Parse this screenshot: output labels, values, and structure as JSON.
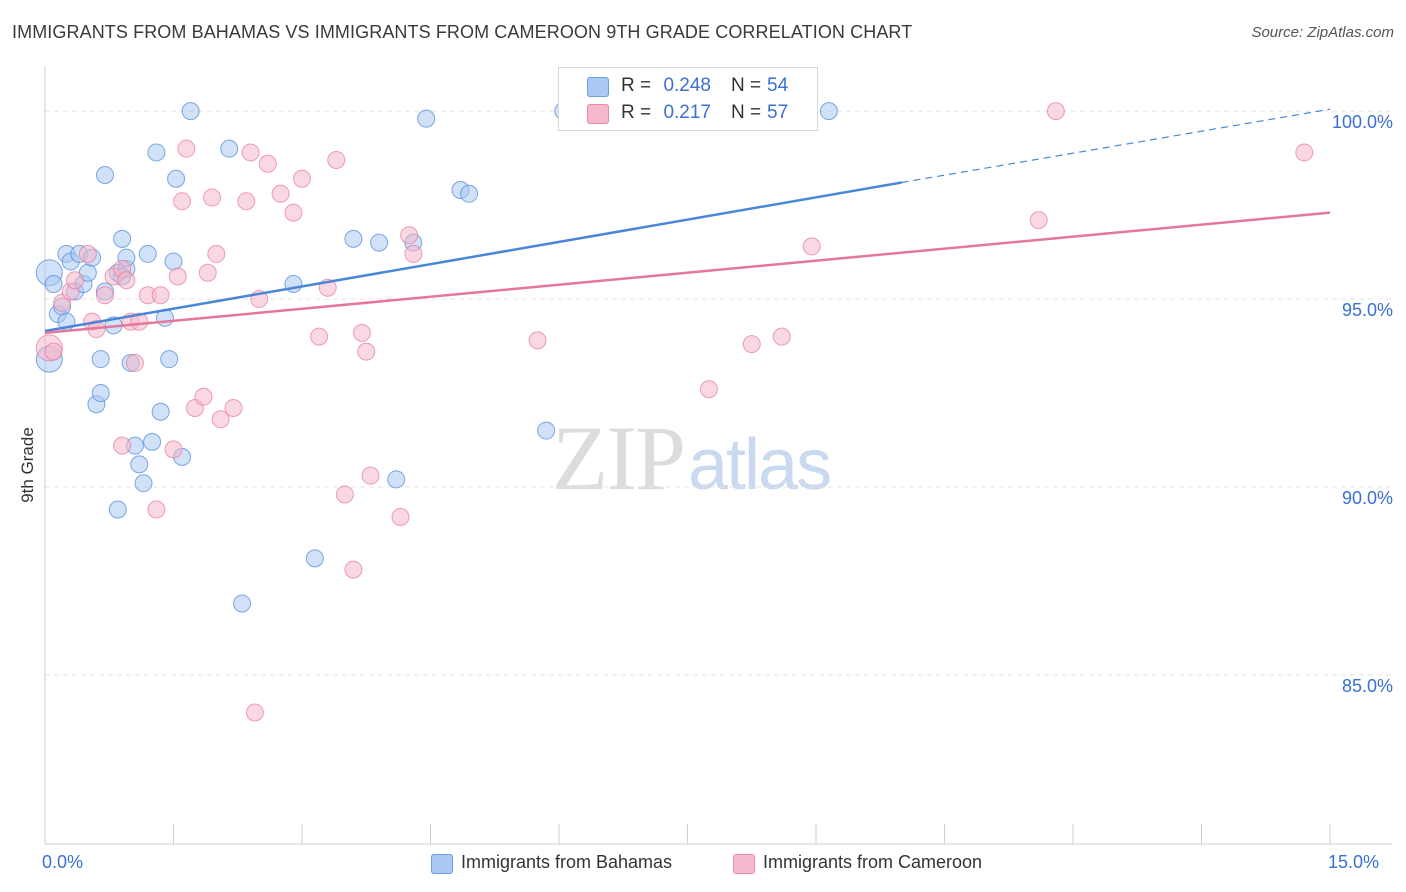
{
  "title": "IMMIGRANTS FROM BAHAMAS VS IMMIGRANTS FROM CAMEROON 9TH GRADE CORRELATION CHART",
  "source": "Source: ZipAtlas.com",
  "watermark": {
    "zip": "ZIP",
    "atlas": "atlas"
  },
  "legend": {
    "rows": [
      {
        "r_label": "R =",
        "r_value": "0.248",
        "n_label": "N =",
        "n_value": "54",
        "color": "#a9c8f3"
      },
      {
        "r_label": "R =",
        "r_value": "0.217",
        "n_label": "N =",
        "n_value": "57",
        "color": "#f6b8cb"
      }
    ]
  },
  "bottom_legend": [
    {
      "label": "Immigrants from Bahamas",
      "color": "#a9c8f3"
    },
    {
      "label": "Immigrants from Cameroon",
      "color": "#f6b8cb"
    }
  ],
  "chart_data": {
    "type": "scatter",
    "title": "IMMIGRANTS FROM BAHAMAS VS IMMIGRANTS FROM CAMEROON 9TH GRADE CORRELATION CHART",
    "xlabel": "",
    "ylabel": "9th Grade",
    "xlim": [
      0,
      15
    ],
    "ylim": [
      80.5,
      101.2
    ],
    "x_tick_labels": [
      {
        "x": 0,
        "label": "0.0%"
      },
      {
        "x": 15,
        "label": "15.0%"
      }
    ],
    "y_ticks": [
      {
        "y": 85,
        "label": "85.0%"
      },
      {
        "y": 90,
        "label": "90.0%"
      },
      {
        "y": 95,
        "label": "95.0%"
      },
      {
        "y": 100,
        "label": "100.0%"
      }
    ],
    "x_minor_ticks": [
      0,
      1.5,
      3,
      4.5,
      6,
      7.5,
      9,
      10.5,
      12,
      13.5,
      15
    ],
    "grid": true,
    "series": [
      {
        "name": "Immigrants from Bahamas",
        "color": "#4a86d8",
        "fill": "#a9c8f3",
        "trend": {
          "x0": 0,
          "y0": 94.15,
          "x1": 10.0,
          "y1": 98.1,
          "dash_x1": 15,
          "dash_y1": 100.05
        },
        "points": [
          [
            0.05,
            93.4
          ],
          [
            0.05,
            95.7
          ],
          [
            0.1,
            95.4
          ],
          [
            0.15,
            94.6
          ],
          [
            0.2,
            94.8
          ],
          [
            0.25,
            94.4
          ],
          [
            0.25,
            96.2
          ],
          [
            0.3,
            96.0
          ],
          [
            0.35,
            95.2
          ],
          [
            0.4,
            96.2
          ],
          [
            0.45,
            95.4
          ],
          [
            0.5,
            95.7
          ],
          [
            0.55,
            96.1
          ],
          [
            0.6,
            92.2
          ],
          [
            0.65,
            93.4
          ],
          [
            0.65,
            92.5
          ],
          [
            0.7,
            98.3
          ],
          [
            0.7,
            95.2
          ],
          [
            0.8,
            94.3
          ],
          [
            0.85,
            95.7
          ],
          [
            0.85,
            89.4
          ],
          [
            0.9,
            96.6
          ],
          [
            0.95,
            95.8
          ],
          [
            0.95,
            96.1
          ],
          [
            1.0,
            93.3
          ],
          [
            1.05,
            91.1
          ],
          [
            1.1,
            90.6
          ],
          [
            1.15,
            90.1
          ],
          [
            1.2,
            96.2
          ],
          [
            1.25,
            91.2
          ],
          [
            1.3,
            98.9
          ],
          [
            1.35,
            92.0
          ],
          [
            1.4,
            94.5
          ],
          [
            1.45,
            93.4
          ],
          [
            1.5,
            96.0
          ],
          [
            1.53,
            98.2
          ],
          [
            1.6,
            90.8
          ],
          [
            1.7,
            100.0
          ],
          [
            2.15,
            99.0
          ],
          [
            2.3,
            86.9
          ],
          [
            2.9,
            95.4
          ],
          [
            3.15,
            88.1
          ],
          [
            3.6,
            96.6
          ],
          [
            3.9,
            96.5
          ],
          [
            4.1,
            90.2
          ],
          [
            4.3,
            96.5
          ],
          [
            4.45,
            99.8
          ],
          [
            4.85,
            97.9
          ],
          [
            4.95,
            97.8
          ],
          [
            5.85,
            91.5
          ],
          [
            6.05,
            100.0
          ],
          [
            6.95,
            100.0
          ],
          [
            9.15,
            100.0
          ],
          [
            0.9,
            95.6
          ]
        ]
      },
      {
        "name": "Immigrants from Cameroon",
        "color": "#e5779c",
        "fill": "#f6b8cb",
        "trend": {
          "x0": 0,
          "y0": 94.1,
          "x1": 15,
          "y1": 97.3
        },
        "points": [
          [
            0.05,
            93.7
          ],
          [
            0.1,
            93.6
          ],
          [
            0.2,
            94.9
          ],
          [
            0.3,
            95.2
          ],
          [
            0.35,
            95.5
          ],
          [
            0.5,
            96.2
          ],
          [
            0.55,
            94.4
          ],
          [
            0.6,
            94.2
          ],
          [
            0.7,
            95.1
          ],
          [
            0.8,
            95.6
          ],
          [
            0.9,
            95.8
          ],
          [
            0.95,
            95.5
          ],
          [
            0.9,
            91.1
          ],
          [
            1.0,
            94.4
          ],
          [
            1.05,
            93.3
          ],
          [
            1.1,
            94.4
          ],
          [
            1.2,
            95.1
          ],
          [
            1.3,
            89.4
          ],
          [
            1.35,
            95.1
          ],
          [
            1.5,
            91.0
          ],
          [
            1.55,
            95.6
          ],
          [
            1.6,
            97.6
          ],
          [
            1.65,
            99.0
          ],
          [
            1.75,
            92.1
          ],
          [
            1.85,
            92.4
          ],
          [
            1.9,
            95.7
          ],
          [
            1.95,
            97.7
          ],
          [
            2.0,
            96.2
          ],
          [
            2.05,
            91.8
          ],
          [
            2.2,
            92.1
          ],
          [
            2.35,
            97.6
          ],
          [
            2.4,
            98.9
          ],
          [
            2.45,
            84.0
          ],
          [
            2.5,
            95.0
          ],
          [
            2.6,
            98.6
          ],
          [
            2.75,
            97.8
          ],
          [
            2.9,
            97.3
          ],
          [
            3.0,
            98.2
          ],
          [
            3.2,
            94.0
          ],
          [
            3.3,
            95.3
          ],
          [
            3.4,
            98.7
          ],
          [
            3.5,
            89.8
          ],
          [
            3.6,
            87.8
          ],
          [
            3.7,
            94.1
          ],
          [
            3.75,
            93.6
          ],
          [
            3.8,
            90.3
          ],
          [
            4.15,
            89.2
          ],
          [
            4.25,
            96.7
          ],
          [
            4.3,
            96.2
          ],
          [
            5.75,
            93.9
          ],
          [
            7.75,
            92.6
          ],
          [
            8.25,
            93.8
          ],
          [
            8.6,
            94.0
          ],
          [
            8.95,
            96.4
          ],
          [
            11.6,
            97.1
          ],
          [
            11.8,
            100.0
          ],
          [
            14.7,
            98.9
          ]
        ]
      }
    ]
  }
}
